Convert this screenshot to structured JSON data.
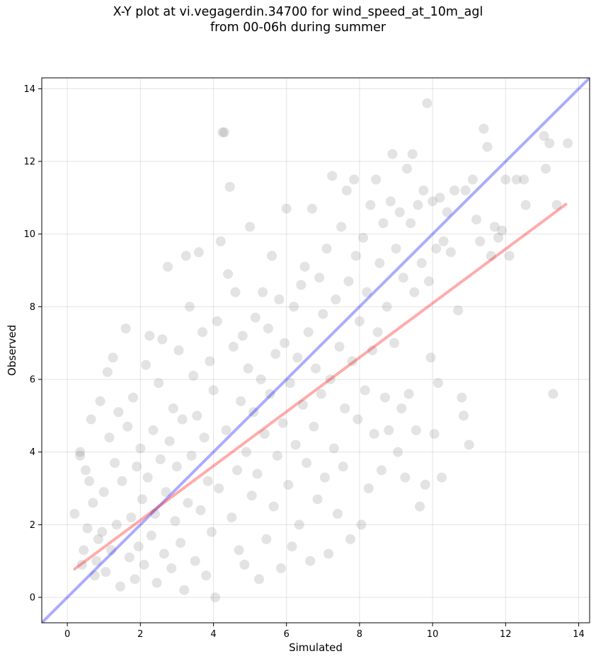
{
  "title_line1": "X-Y plot at vi.vegagerdin.34700 for wind_speed_at_10m_agl",
  "title_line2": "from 00-06h during summer",
  "colors": {
    "points": "#808080",
    "identity_line": "#0000ff",
    "fit_line": "#ff0000",
    "grid": "#b0b0b0"
  },
  "chart_data": {
    "type": "scatter",
    "title": "X-Y plot at vi.vegagerdin.34700 for wind_speed_at_10m_agl from 00-06h during summer",
    "xlabel": "Simulated",
    "ylabel": "Observed",
    "xlim": [
      -0.7,
      14.3
    ],
    "ylim": [
      -0.7,
      14.3
    ],
    "xticks": [
      0,
      2,
      4,
      6,
      8,
      10,
      12,
      14
    ],
    "yticks": [
      0,
      2,
      4,
      6,
      8,
      10,
      12,
      14
    ],
    "grid": true,
    "lines": [
      {
        "kind": "identity",
        "color": "blue",
        "x": [
          -0.7,
          14.3
        ],
        "y": [
          -0.7,
          14.3
        ]
      },
      {
        "kind": "fit",
        "color": "red",
        "x": [
          0.2,
          13.65
        ],
        "y": [
          0.78,
          10.82
        ]
      }
    ],
    "points": [
      [
        0.2,
        2.3
      ],
      [
        0.35,
        3.9
      ],
      [
        0.35,
        4.0
      ],
      [
        0.4,
        0.9
      ],
      [
        0.45,
        1.3
      ],
      [
        0.5,
        3.5
      ],
      [
        0.55,
        1.9
      ],
      [
        0.6,
        3.2
      ],
      [
        0.65,
        4.9
      ],
      [
        0.7,
        2.6
      ],
      [
        0.75,
        0.6
      ],
      [
        0.8,
        1.0
      ],
      [
        0.85,
        1.6
      ],
      [
        0.9,
        5.4
      ],
      [
        0.95,
        1.8
      ],
      [
        1.0,
        2.9
      ],
      [
        1.05,
        0.7
      ],
      [
        1.1,
        6.2
      ],
      [
        1.15,
        4.4
      ],
      [
        1.2,
        1.3
      ],
      [
        1.25,
        6.6
      ],
      [
        1.3,
        3.7
      ],
      [
        1.35,
        2.0
      ],
      [
        1.4,
        5.1
      ],
      [
        1.45,
        0.3
      ],
      [
        1.5,
        3.2
      ],
      [
        1.6,
        7.4
      ],
      [
        1.65,
        4.7
      ],
      [
        1.7,
        1.1
      ],
      [
        1.75,
        2.2
      ],
      [
        1.8,
        5.5
      ],
      [
        1.85,
        0.5
      ],
      [
        1.9,
        3.6
      ],
      [
        1.95,
        1.4
      ],
      [
        2.0,
        4.1
      ],
      [
        2.05,
        2.7
      ],
      [
        2.1,
        0.9
      ],
      [
        2.15,
        6.4
      ],
      [
        2.2,
        3.3
      ],
      [
        2.25,
        7.2
      ],
      [
        2.3,
        1.7
      ],
      [
        2.35,
        4.6
      ],
      [
        2.4,
        2.3
      ],
      [
        2.45,
        0.4
      ],
      [
        2.5,
        5.9
      ],
      [
        2.55,
        3.8
      ],
      [
        2.6,
        7.1
      ],
      [
        2.65,
        1.2
      ],
      [
        2.7,
        2.9
      ],
      [
        2.75,
        9.1
      ],
      [
        2.8,
        4.3
      ],
      [
        2.85,
        0.8
      ],
      [
        2.9,
        5.2
      ],
      [
        2.95,
        2.1
      ],
      [
        3.0,
        3.6
      ],
      [
        3.05,
        6.8
      ],
      [
        3.1,
        1.5
      ],
      [
        3.15,
        4.9
      ],
      [
        3.2,
        0.2
      ],
      [
        3.25,
        9.4
      ],
      [
        3.3,
        2.6
      ],
      [
        3.35,
        8.0
      ],
      [
        3.4,
        3.9
      ],
      [
        3.45,
        6.1
      ],
      [
        3.5,
        1.0
      ],
      [
        3.55,
        5.0
      ],
      [
        3.6,
        9.5
      ],
      [
        3.65,
        2.4
      ],
      [
        3.7,
        7.3
      ],
      [
        3.75,
        4.4
      ],
      [
        3.8,
        0.6
      ],
      [
        3.85,
        3.2
      ],
      [
        3.9,
        6.5
      ],
      [
        3.95,
        1.8
      ],
      [
        4.0,
        5.7
      ],
      [
        4.05,
        0.0
      ],
      [
        4.1,
        7.6
      ],
      [
        4.15,
        3.0
      ],
      [
        4.2,
        9.8
      ],
      [
        4.25,
        12.8
      ],
      [
        4.3,
        12.8
      ],
      [
        4.35,
        4.6
      ],
      [
        4.4,
        8.9
      ],
      [
        4.45,
        11.3
      ],
      [
        4.5,
        2.2
      ],
      [
        4.55,
        6.9
      ],
      [
        4.6,
        8.4
      ],
      [
        4.65,
        3.5
      ],
      [
        4.7,
        1.3
      ],
      [
        4.75,
        5.4
      ],
      [
        4.8,
        7.2
      ],
      [
        4.85,
        0.9
      ],
      [
        4.9,
        4.0
      ],
      [
        4.95,
        6.3
      ],
      [
        5.0,
        10.2
      ],
      [
        5.05,
        2.8
      ],
      [
        5.1,
        5.1
      ],
      [
        5.15,
        7.7
      ],
      [
        5.2,
        3.4
      ],
      [
        5.25,
        0.5
      ],
      [
        5.3,
        6.0
      ],
      [
        5.35,
        8.4
      ],
      [
        5.4,
        4.5
      ],
      [
        5.45,
        1.6
      ],
      [
        5.5,
        7.4
      ],
      [
        5.55,
        5.6
      ],
      [
        5.6,
        9.4
      ],
      [
        5.65,
        2.5
      ],
      [
        5.7,
        6.7
      ],
      [
        5.75,
        3.9
      ],
      [
        5.8,
        8.2
      ],
      [
        5.85,
        0.8
      ],
      [
        5.9,
        4.8
      ],
      [
        5.95,
        7.0
      ],
      [
        6.0,
        10.7
      ],
      [
        6.05,
        3.1
      ],
      [
        6.1,
        5.9
      ],
      [
        6.15,
        1.4
      ],
      [
        6.2,
        8.0
      ],
      [
        6.25,
        4.2
      ],
      [
        6.3,
        6.6
      ],
      [
        6.35,
        2.0
      ],
      [
        6.4,
        8.6
      ],
      [
        6.45,
        5.3
      ],
      [
        6.5,
        9.1
      ],
      [
        6.55,
        3.7
      ],
      [
        6.6,
        7.3
      ],
      [
        6.65,
        1.0
      ],
      [
        6.7,
        10.7
      ],
      [
        6.75,
        4.7
      ],
      [
        6.8,
        6.3
      ],
      [
        6.85,
        2.7
      ],
      [
        6.9,
        8.8
      ],
      [
        6.95,
        5.6
      ],
      [
        7.0,
        7.8
      ],
      [
        7.05,
        3.3
      ],
      [
        7.1,
        9.6
      ],
      [
        7.15,
        1.2
      ],
      [
        7.2,
        6.0
      ],
      [
        7.25,
        11.6
      ],
      [
        7.3,
        4.1
      ],
      [
        7.35,
        8.2
      ],
      [
        7.4,
        2.3
      ],
      [
        7.45,
        6.9
      ],
      [
        7.5,
        10.2
      ],
      [
        7.55,
        3.6
      ],
      [
        7.6,
        5.2
      ],
      [
        7.65,
        11.2
      ],
      [
        7.7,
        8.7
      ],
      [
        7.75,
        1.6
      ],
      [
        7.8,
        6.5
      ],
      [
        7.85,
        11.5
      ],
      [
        7.9,
        9.4
      ],
      [
        7.95,
        4.9
      ],
      [
        8.0,
        7.6
      ],
      [
        8.05,
        2.0
      ],
      [
        8.1,
        9.9
      ],
      [
        8.15,
        5.7
      ],
      [
        8.2,
        8.4
      ],
      [
        8.25,
        3.0
      ],
      [
        8.3,
        10.8
      ],
      [
        8.35,
        6.8
      ],
      [
        8.4,
        4.5
      ],
      [
        8.45,
        11.5
      ],
      [
        8.5,
        7.3
      ],
      [
        8.55,
        9.2
      ],
      [
        8.6,
        3.5
      ],
      [
        8.65,
        10.3
      ],
      [
        8.7,
        5.5
      ],
      [
        8.75,
        8.0
      ],
      [
        8.8,
        4.6
      ],
      [
        8.85,
        10.9
      ],
      [
        8.9,
        12.2
      ],
      [
        8.95,
        7.0
      ],
      [
        9.0,
        9.6
      ],
      [
        9.05,
        4.0
      ],
      [
        9.1,
        10.6
      ],
      [
        9.15,
        5.2
      ],
      [
        9.2,
        8.8
      ],
      [
        9.25,
        3.3
      ],
      [
        9.3,
        11.8
      ],
      [
        9.35,
        5.6
      ],
      [
        9.4,
        10.3
      ],
      [
        9.45,
        12.2
      ],
      [
        9.5,
        8.4
      ],
      [
        9.55,
        4.6
      ],
      [
        9.6,
        10.8
      ],
      [
        9.65,
        2.5
      ],
      [
        9.7,
        9.2
      ],
      [
        9.75,
        11.2
      ],
      [
        9.8,
        3.1
      ],
      [
        9.85,
        13.6
      ],
      [
        9.9,
        8.7
      ],
      [
        9.95,
        6.6
      ],
      [
        10.0,
        10.9
      ],
      [
        10.05,
        4.5
      ],
      [
        10.1,
        9.6
      ],
      [
        10.15,
        5.9
      ],
      [
        10.2,
        11.0
      ],
      [
        10.25,
        3.3
      ],
      [
        10.3,
        9.8
      ],
      [
        10.4,
        10.6
      ],
      [
        10.5,
        9.5
      ],
      [
        10.6,
        11.2
      ],
      [
        10.7,
        7.9
      ],
      [
        10.8,
        5.5
      ],
      [
        10.85,
        5.0
      ],
      [
        10.9,
        11.2
      ],
      [
        11.0,
        4.2
      ],
      [
        11.1,
        11.5
      ],
      [
        11.2,
        10.4
      ],
      [
        11.3,
        9.8
      ],
      [
        11.4,
        12.9
      ],
      [
        11.5,
        12.4
      ],
      [
        11.6,
        9.4
      ],
      [
        11.7,
        10.2
      ],
      [
        11.8,
        9.9
      ],
      [
        11.9,
        10.1
      ],
      [
        12.0,
        11.5
      ],
      [
        12.1,
        9.4
      ],
      [
        12.3,
        11.5
      ],
      [
        12.5,
        11.5
      ],
      [
        12.55,
        10.8
      ],
      [
        13.05,
        12.7
      ],
      [
        13.1,
        11.8
      ],
      [
        13.2,
        12.5
      ],
      [
        13.3,
        5.6
      ],
      [
        13.4,
        10.8
      ],
      [
        13.7,
        12.5
      ]
    ]
  }
}
